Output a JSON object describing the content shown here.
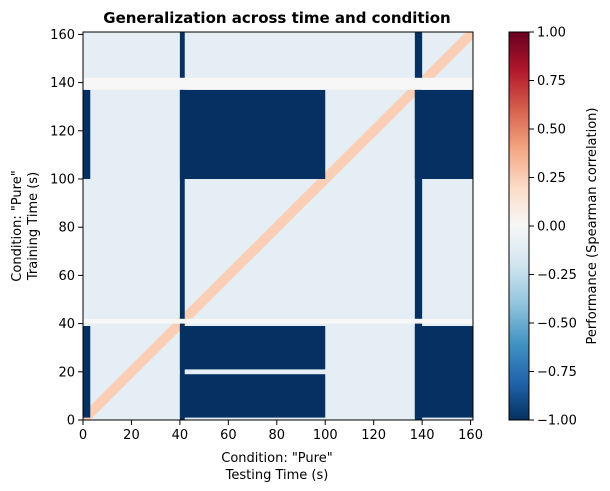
{
  "chart_data": {
    "type": "heatmap",
    "title": "Generalization across time and condition",
    "xlabel_line1": "Condition: \"Pure\"",
    "xlabel_line2": "Testing Time (s)",
    "ylabel_line1": "Condition: \"Pure\"",
    "ylabel_line2": "Training Time (s)",
    "xlim": [
      0,
      161
    ],
    "ylim": [
      0,
      161
    ],
    "xticks": [
      "0",
      "20",
      "40",
      "60",
      "80",
      "100",
      "120",
      "140",
      "160"
    ],
    "yticks": [
      "0",
      "20",
      "40",
      "60",
      "80",
      "100",
      "120",
      "140",
      "160"
    ],
    "colorbar": {
      "label": "Performance (Spearman correlation)",
      "colormap": "RdBu_r",
      "range": [
        -1.0,
        1.0
      ],
      "ticks": [
        "1.00",
        "0.75",
        "0.50",
        "0.25",
        "0.00",
        "−0.25",
        "−0.50",
        "−0.75",
        "−1.00"
      ]
    },
    "regions": [
      {
        "test_range": [
          40,
          100
        ],
        "train_range": [
          1,
          19
        ],
        "value": -1.0
      },
      {
        "test_range": [
          40,
          100
        ],
        "train_range": [
          21,
          39
        ],
        "value": -1.0
      },
      {
        "test_range": [
          40,
          100
        ],
        "train_range": [
          100,
          137
        ],
        "value": -1.0
      },
      {
        "test_range": [
          137,
          161
        ],
        "train_range": [
          1,
          39
        ],
        "value": -1.0
      },
      {
        "test_range": [
          137,
          161
        ],
        "train_range": [
          100,
          137
        ],
        "value": -1.0
      },
      {
        "test_range": [
          40,
          42
        ],
        "train_range": [
          0,
          161
        ],
        "value": -1.0
      },
      {
        "test_range": [
          137,
          140
        ],
        "train_range": [
          0,
          161
        ],
        "value": -1.0
      },
      {
        "test_range": [
          0,
          3
        ],
        "train_range": [
          100,
          137
        ],
        "value": -1.0
      },
      {
        "test_range": [
          0,
          3
        ],
        "train_range": [
          1,
          39
        ],
        "value": -1.0
      },
      {
        "test_range": [
          0,
          161
        ],
        "train_range": [
          40,
          42
        ],
        "value": 0.0
      },
      {
        "test_range": [
          0,
          161
        ],
        "train_range": [
          137,
          142
        ],
        "value": 0.0
      }
    ],
    "diagonal_value": 0.25,
    "background_value": -0.1
  },
  "colors": {
    "deep_blue": "#053061",
    "light_blue": "#dbeaf2",
    "diag_red": "#fbe4d6"
  }
}
